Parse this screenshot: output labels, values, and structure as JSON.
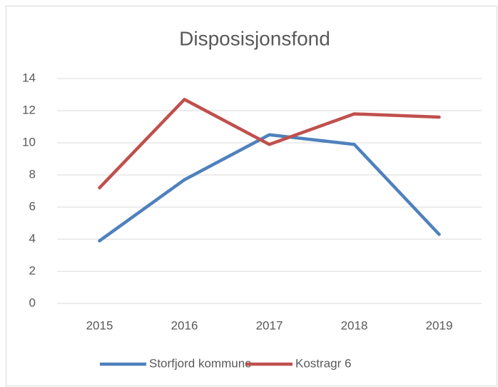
{
  "chart_data": {
    "type": "line",
    "title": "Disposisjonsfond",
    "categories": [
      "2015",
      "2016",
      "2017",
      "2018",
      "2019"
    ],
    "series": [
      {
        "name": "Storfjord kommune",
        "color": "#4f81bd",
        "values": [
          3.9,
          7.7,
          10.5,
          9.9,
          4.3
        ]
      },
      {
        "name": "Kostragr 6",
        "color": "#c0504d",
        "values": [
          7.2,
          12.7,
          9.9,
          11.8,
          11.6
        ]
      }
    ],
    "ylim": [
      0,
      14
    ],
    "yticks": [
      0,
      2,
      4,
      6,
      8,
      10,
      12,
      14
    ],
    "grid": true,
    "legend": "bottom"
  }
}
